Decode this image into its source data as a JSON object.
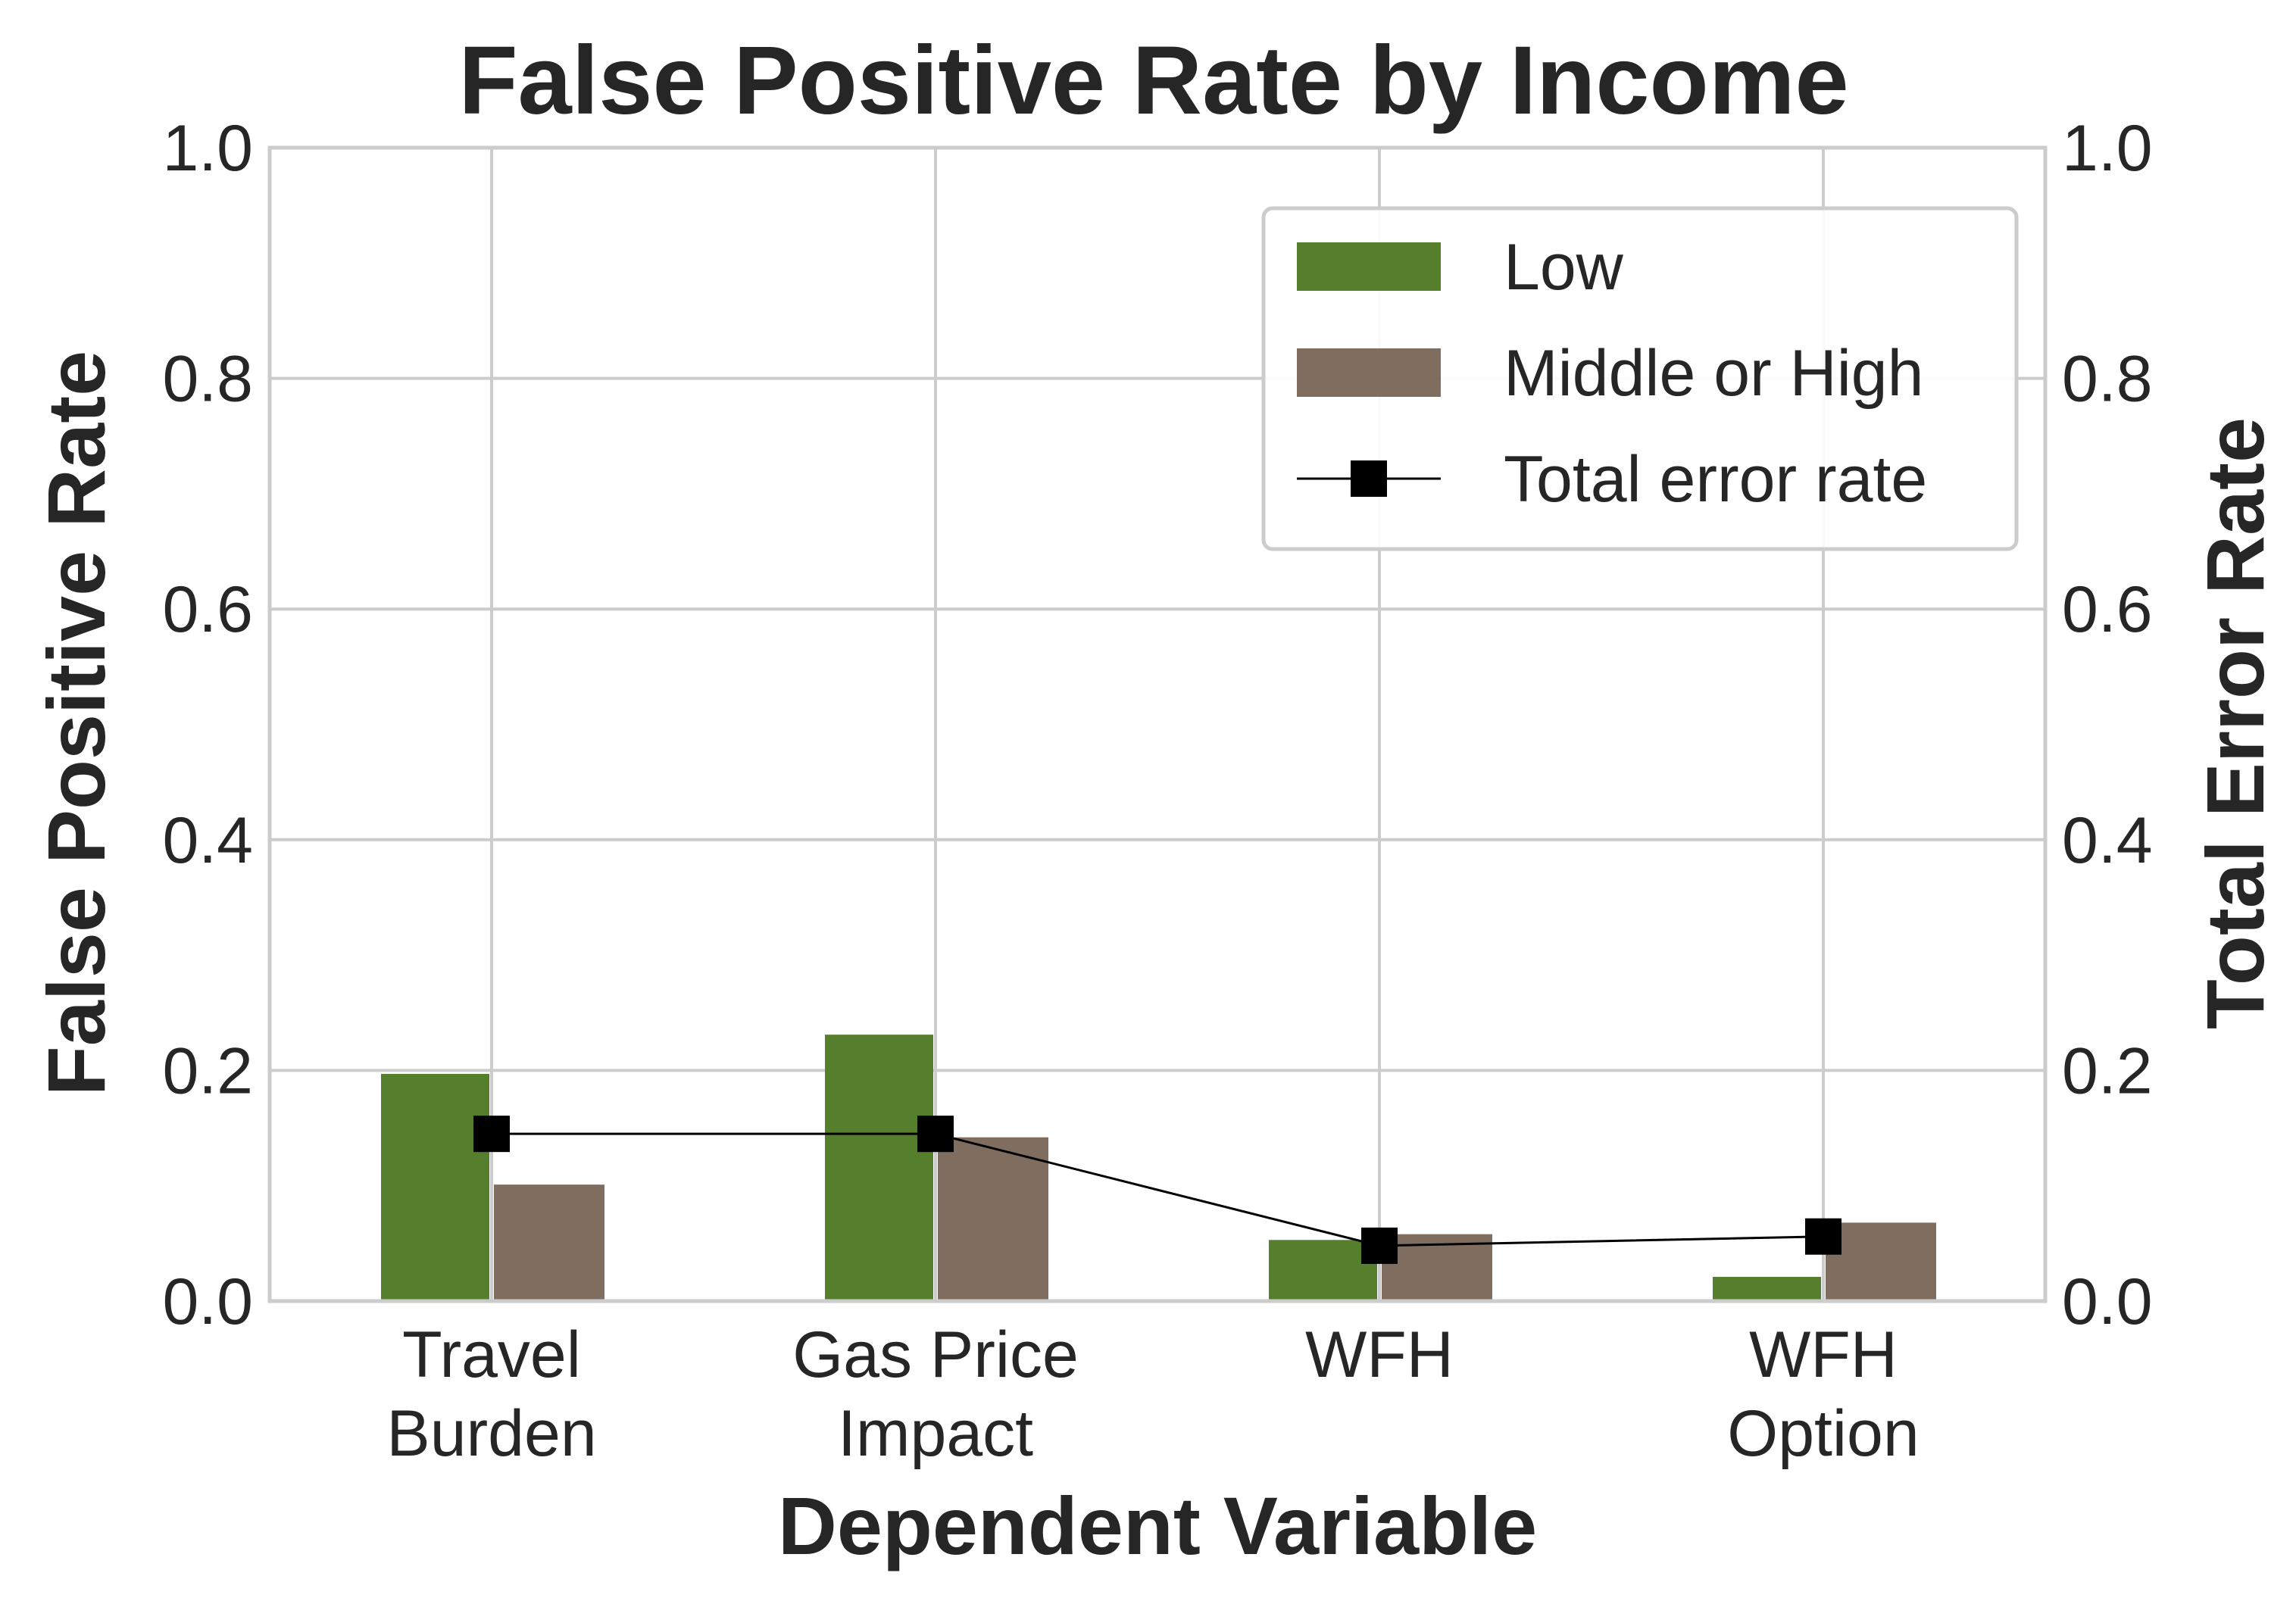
{
  "chart_data": {
    "type": "bar",
    "title": "False Positive Rate by Income",
    "xlabel": "Dependent Variable",
    "ylabel": "False Positive Rate",
    "y2label": "Total Error Rate",
    "categories": [
      [
        "Travel",
        "Burden"
      ],
      [
        "Gas Price",
        "Impact"
      ],
      [
        "WFH"
      ],
      [
        "WFH",
        "Option"
      ]
    ],
    "series": [
      {
        "name": "Low",
        "kind": "bar",
        "color": "#557f2d",
        "values": [
          0.197,
          0.231,
          0.053,
          0.021
        ]
      },
      {
        "name": "Middle or High",
        "kind": "bar",
        "color": "#7f6d5f",
        "values": [
          0.101,
          0.142,
          0.058,
          0.068
        ]
      },
      {
        "name": "Total error rate",
        "kind": "line",
        "axis": "right",
        "color": "#000000",
        "marker": "square",
        "values": [
          0.145,
          0.145,
          0.048,
          0.056
        ]
      }
    ],
    "ylim": [
      0,
      1.0
    ],
    "y2lim": [
      0,
      1.0
    ],
    "yticks": [
      "0.0",
      "0.2",
      "0.4",
      "0.6",
      "0.8",
      "1.0"
    ],
    "y2ticks": [
      "0.0",
      "0.2",
      "0.4",
      "0.6",
      "0.8",
      "1.0"
    ],
    "grid": true,
    "legend_position": "top-right"
  }
}
